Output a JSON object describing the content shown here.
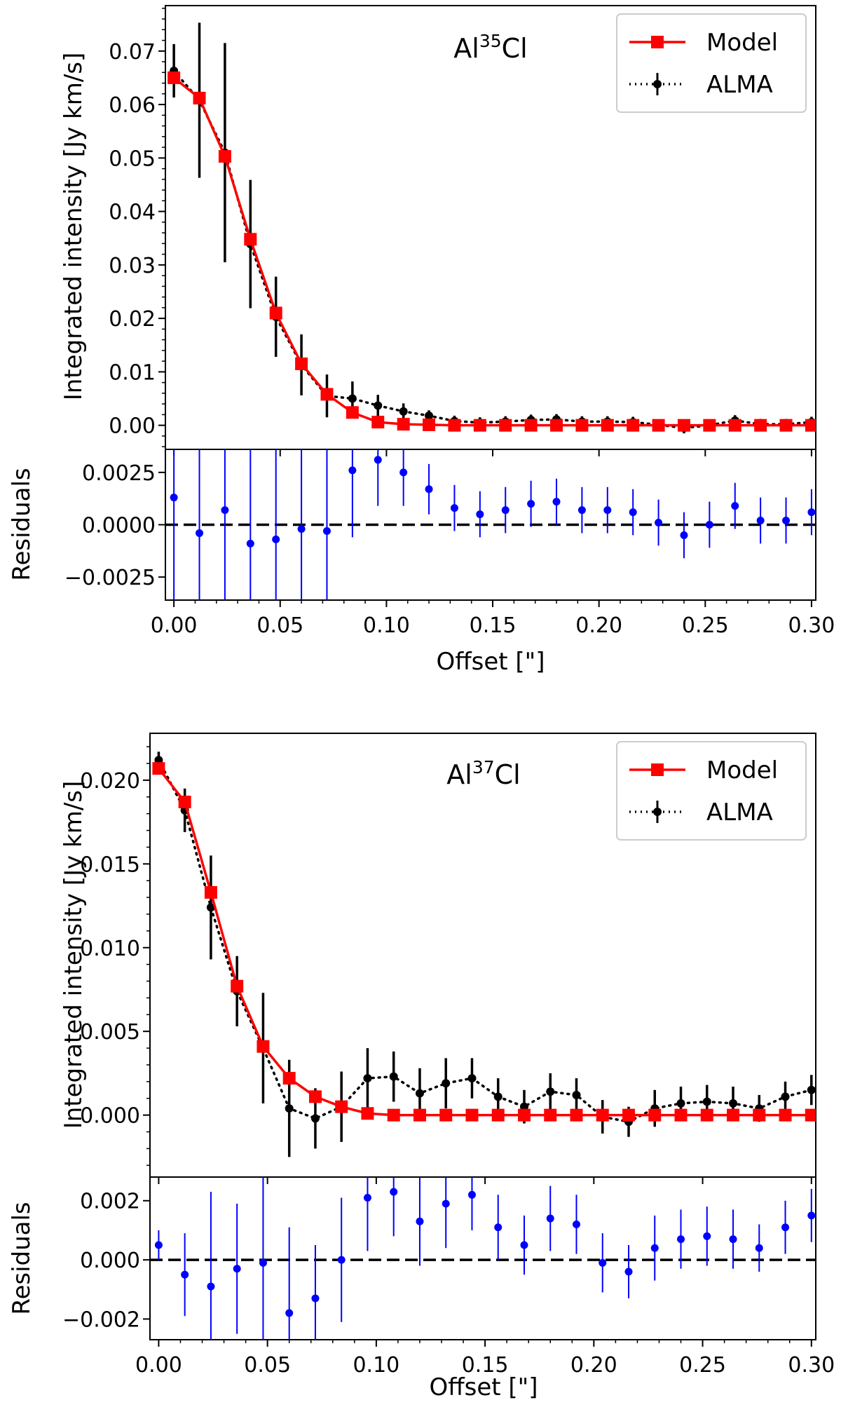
{
  "chart_data": [
    {
      "type": "line",
      "molecule_prefix": "Al",
      "molecule_sup": "35",
      "molecule_suffix": "Cl",
      "xlabel": "Offset [\"]",
      "ylabel": "Integrated intensity [Jy km/s]",
      "xlim": [
        -0.004,
        0.302
      ],
      "ylim": [
        -0.0045,
        0.0785
      ],
      "xticks": [
        "0.00",
        "0.05",
        "0.10",
        "0.15",
        "0.20",
        "0.25",
        "0.30"
      ],
      "yticks": [
        "0.00",
        "0.01",
        "0.02",
        "0.03",
        "0.04",
        "0.05",
        "0.06",
        "0.07"
      ],
      "legend": {
        "position": "top-right",
        "model": "Model",
        "alma": "ALMA"
      },
      "x": [
        0.0,
        0.012,
        0.024,
        0.036,
        0.048,
        0.06,
        0.072,
        0.084,
        0.096,
        0.108,
        0.12,
        0.132,
        0.144,
        0.156,
        0.168,
        0.18,
        0.192,
        0.204,
        0.216,
        0.228,
        0.24,
        0.252,
        0.264,
        0.276,
        0.288,
        0.3
      ],
      "series": [
        {
          "name": "Model",
          "color": "#ff0000",
          "values": [
            0.065,
            0.0612,
            0.0503,
            0.0348,
            0.021,
            0.0115,
            0.0058,
            0.0024,
            0.0006,
            0.0002,
            0.0001,
            0.0,
            0.0,
            0.0,
            0.0,
            0.0,
            0.0,
            0.0,
            0.0,
            0.0,
            0.0,
            0.0,
            0.0,
            0.0,
            0.0,
            0.0
          ]
        },
        {
          "name": "ALMA",
          "color": "#000000",
          "values": [
            0.0663,
            0.0608,
            0.051,
            0.0339,
            0.0203,
            0.0113,
            0.0055,
            0.005,
            0.0037,
            0.0026,
            0.0018,
            0.0008,
            0.0005,
            0.0007,
            0.001,
            0.0011,
            0.0007,
            0.0007,
            0.0006,
            0.0001,
            -0.0005,
            0.0,
            0.0009,
            0.0002,
            0.0002,
            0.0006
          ],
          "errors": [
            0.005,
            0.0145,
            0.0205,
            0.012,
            0.0075,
            0.0057,
            0.004,
            0.0032,
            0.002,
            0.0015,
            0.001,
            0.001,
            0.001,
            0.001,
            0.001,
            0.001,
            0.001,
            0.001,
            0.001,
            0.001,
            0.001,
            0.001,
            0.001,
            0.001,
            0.001,
            0.001
          ]
        }
      ],
      "residuals": {
        "ylabel": "Residuals",
        "ylim": [
          -0.0036,
          0.0036
        ],
        "yticks": [
          "0.0025",
          "0.0000",
          "−0.0025"
        ],
        "color": "#0000ff",
        "values": [
          0.0013,
          -0.0004,
          0.0007,
          -0.0009,
          -0.0007,
          -0.0002,
          -0.0003,
          0.0026,
          0.0031,
          0.0025,
          0.0017,
          0.0008,
          0.0005,
          0.0007,
          0.001,
          0.0011,
          0.0007,
          0.0007,
          0.0006,
          0.0001,
          -0.0005,
          0.0,
          0.0009,
          0.0002,
          0.0002,
          0.0006
        ],
        "errors": [
          0.005,
          0.0145,
          0.0205,
          0.012,
          0.0075,
          0.0057,
          0.004,
          0.0032,
          0.0022,
          0.0016,
          0.0012,
          0.0011,
          0.0011,
          0.0011,
          0.0011,
          0.0011,
          0.0011,
          0.0011,
          0.0011,
          0.0011,
          0.0011,
          0.0011,
          0.0011,
          0.0011,
          0.0011,
          0.0011
        ]
      }
    },
    {
      "type": "line",
      "molecule_prefix": "Al",
      "molecule_sup": "37",
      "molecule_suffix": "Cl",
      "xlabel": "Offset [\"]",
      "ylabel": "Integrated intensity [Jy km/s]",
      "xlim": [
        -0.004,
        0.302
      ],
      "ylim": [
        -0.0037,
        0.0228
      ],
      "xticks": [
        "0.00",
        "0.05",
        "0.10",
        "0.15",
        "0.20",
        "0.25",
        "0.30"
      ],
      "yticks": [
        "0.000",
        "0.005",
        "0.010",
        "0.015",
        "0.020"
      ],
      "legend": {
        "position": "top-right",
        "model": "Model",
        "alma": "ALMA"
      },
      "x": [
        0.0,
        0.012,
        0.024,
        0.036,
        0.048,
        0.06,
        0.072,
        0.084,
        0.096,
        0.108,
        0.12,
        0.132,
        0.144,
        0.156,
        0.168,
        0.18,
        0.192,
        0.204,
        0.216,
        0.228,
        0.24,
        0.252,
        0.264,
        0.276,
        0.288,
        0.3
      ],
      "series": [
        {
          "name": "Model",
          "color": "#ff0000",
          "values": [
            0.0207,
            0.0187,
            0.0133,
            0.0077,
            0.0041,
            0.0022,
            0.0011,
            0.0005,
            0.0001,
            0.0,
            0.0,
            0.0,
            0.0,
            0.0,
            0.0,
            0.0,
            0.0,
            0.0,
            0.0,
            0.0,
            0.0,
            0.0,
            0.0,
            0.0,
            0.0,
            0.0
          ]
        },
        {
          "name": "ALMA",
          "color": "#000000",
          "values": [
            0.0212,
            0.0182,
            0.0124,
            0.0074,
            0.004,
            0.0004,
            -0.0002,
            0.0005,
            0.0022,
            0.0023,
            0.0013,
            0.0019,
            0.0022,
            0.0011,
            0.0005,
            0.0014,
            0.0012,
            -0.0001,
            -0.0004,
            0.0004,
            0.0007,
            0.0008,
            0.0007,
            0.0004,
            0.0011,
            0.0015
          ],
          "errors": [
            0.0005,
            0.0013,
            0.0031,
            0.0021,
            0.0033,
            0.0029,
            0.0018,
            0.0021,
            0.0018,
            0.0015,
            0.0015,
            0.0015,
            0.0012,
            0.0011,
            0.001,
            0.0011,
            0.001,
            0.001,
            0.0009,
            0.0011,
            0.001,
            0.001,
            0.001,
            0.0008,
            0.0009,
            0.0009
          ]
        }
      ],
      "residuals": {
        "ylabel": "Residuals",
        "ylim": [
          -0.0027,
          0.0028
        ],
        "yticks": [
          "0.002",
          "0.000",
          "−0.002"
        ],
        "color": "#0000ff",
        "values": [
          0.0005,
          -0.0005,
          -0.0009,
          -0.0003,
          -0.0001,
          -0.0018,
          -0.0013,
          0.0,
          0.0021,
          0.0023,
          0.0013,
          0.0019,
          0.0022,
          0.0011,
          0.0005,
          0.0014,
          0.0012,
          -0.0001,
          -0.0004,
          0.0004,
          0.0007,
          0.0008,
          0.0007,
          0.0004,
          0.0011,
          0.0015
        ],
        "errors": [
          0.0005,
          0.0014,
          0.0032,
          0.0022,
          0.0033,
          0.0029,
          0.0018,
          0.0021,
          0.0018,
          0.0015,
          0.0015,
          0.0015,
          0.0012,
          0.0011,
          0.001,
          0.0011,
          0.001,
          0.001,
          0.0009,
          0.0011,
          0.001,
          0.001,
          0.001,
          0.0008,
          0.0009,
          0.0009
        ]
      }
    }
  ]
}
